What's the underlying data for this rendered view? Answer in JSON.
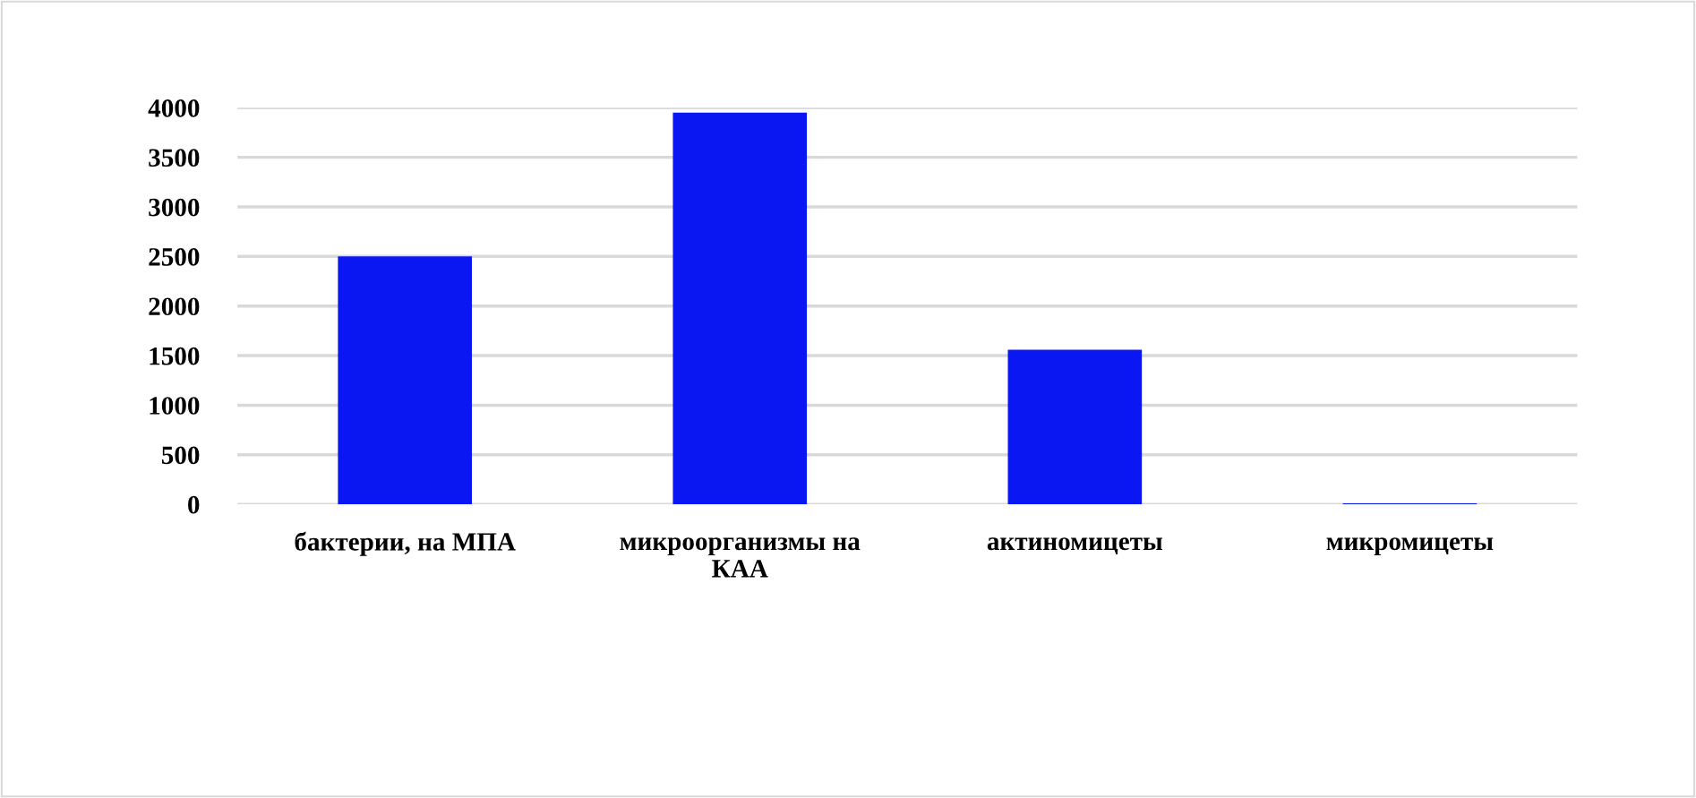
{
  "chart_data": {
    "type": "bar",
    "categories": [
      "бактерии, на МПА",
      "микроорганизмы на КАА",
      "актиномицеты",
      "микромицеты"
    ],
    "values": [
      2500,
      3950,
      1560,
      10
    ],
    "color": "#0b17f2",
    "ylim": [
      0,
      4000
    ],
    "yticks": [
      0,
      500,
      1000,
      1500,
      2000,
      2500,
      3000,
      3500,
      4000
    ],
    "grid": "y"
  }
}
